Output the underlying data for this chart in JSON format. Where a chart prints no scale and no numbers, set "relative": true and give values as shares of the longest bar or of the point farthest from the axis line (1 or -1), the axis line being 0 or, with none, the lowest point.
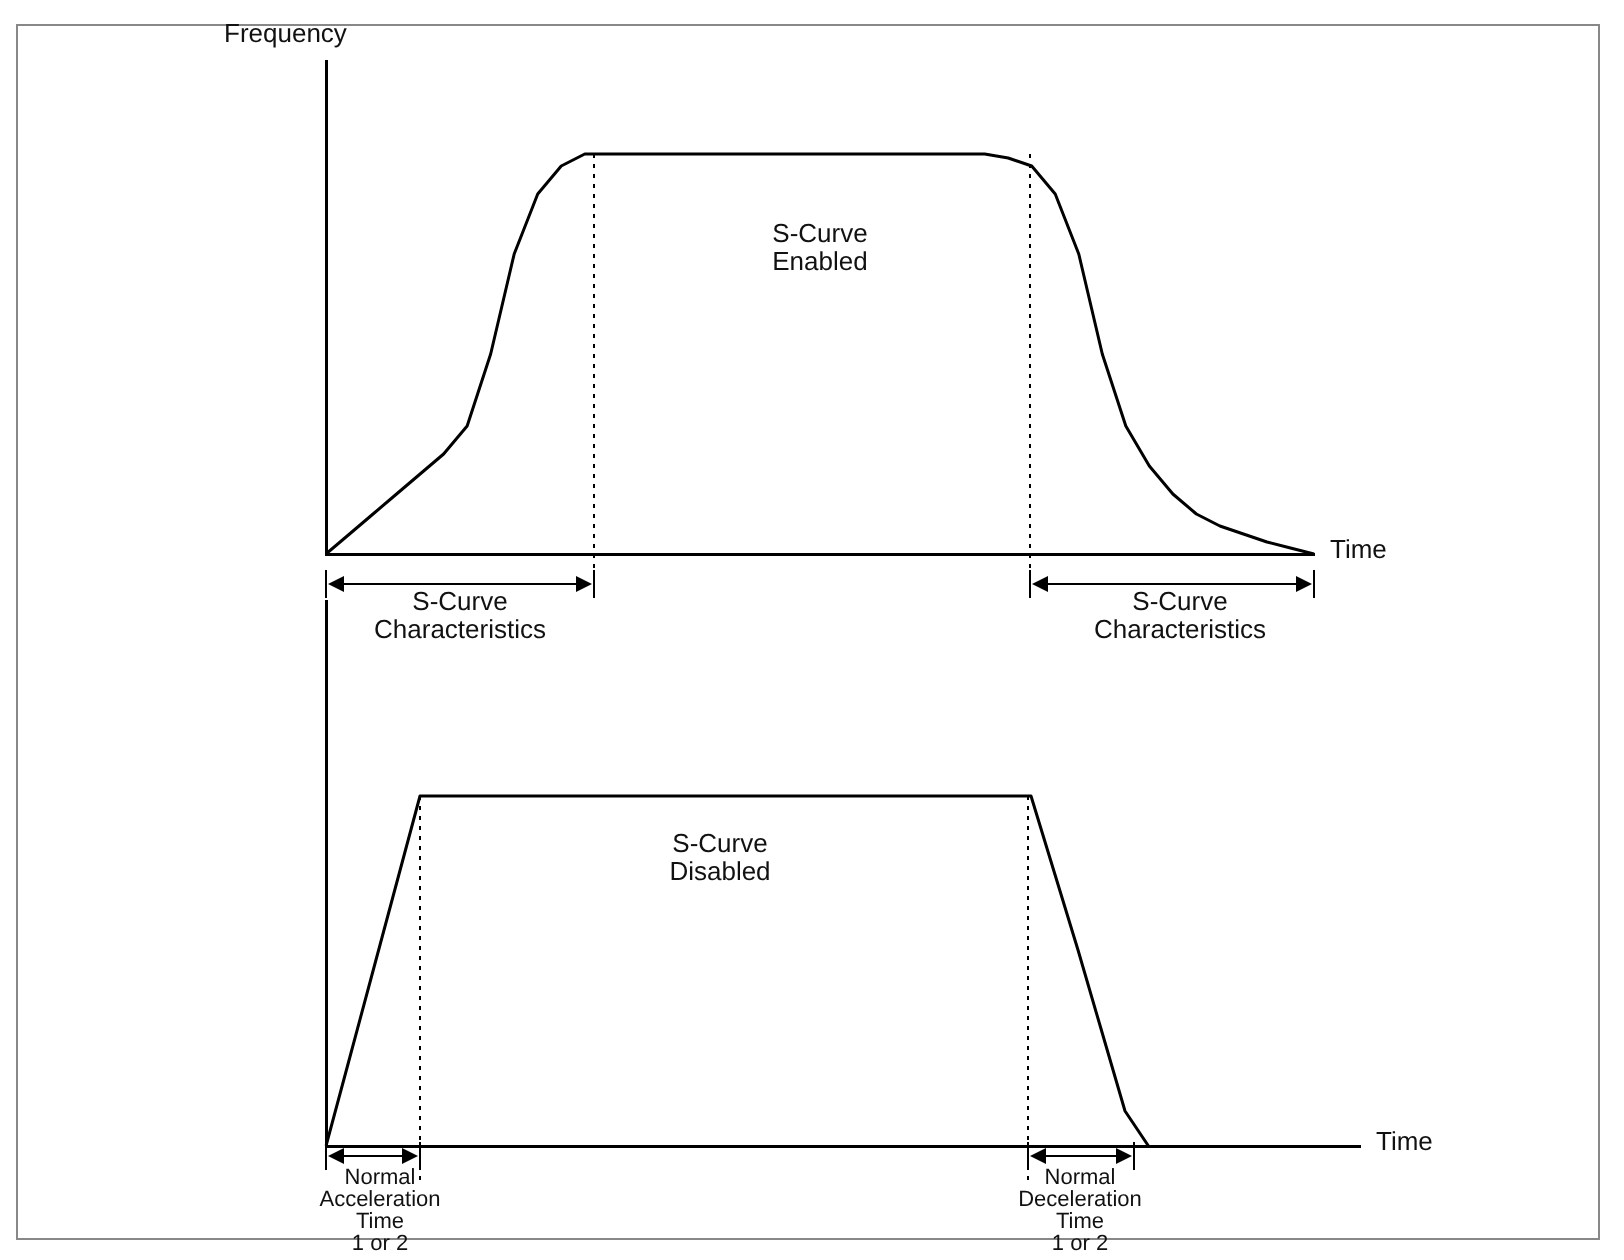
{
  "chart_data": [
    {
      "type": "line",
      "relative": true,
      "ylabel": "Frequency",
      "xlabel": "Time",
      "color": "#000000",
      "marker": "none",
      "line_style": "solid",
      "grid": false,
      "legend": false,
      "tick_labels": false,
      "categories": [
        null,
        null,
        null,
        null,
        null,
        null,
        null,
        null,
        null,
        null,
        null,
        null,
        null,
        null,
        null,
        null,
        null,
        null,
        null,
        null,
        null,
        null,
        null,
        null,
        null,
        null,
        null,
        null,
        null,
        null,
        null,
        null,
        null,
        null,
        null,
        null,
        null,
        null,
        null,
        null,
        null,
        null,
        null
      ],
      "values": [
        0,
        0.05,
        0.1,
        0.15,
        0.2,
        0.25,
        0.32,
        0.5,
        0.75,
        0.9,
        0.97,
        1,
        1,
        1,
        1,
        1,
        1,
        1,
        1,
        1,
        1,
        1,
        1,
        1,
        1,
        1,
        1,
        1,
        1,
        0.99,
        0.97,
        0.9,
        0.75,
        0.5,
        0.32,
        0.22,
        0.15,
        0.1,
        0.07,
        0.05,
        0.03,
        0.015,
        0
      ],
      "annotations": [
        "S-Curve\nEnabled",
        "S-Curve\nCharacteristics",
        "S-Curve\nCharacteristics"
      ]
    },
    {
      "type": "line",
      "relative": true,
      "xlabel": "Time",
      "color": "#000000",
      "marker": "none",
      "line_style": "solid",
      "grid": false,
      "legend": false,
      "tick_labels": false,
      "categories": [
        null,
        null,
        null,
        null,
        null,
        null,
        null,
        null,
        null,
        null,
        null,
        null,
        null,
        null,
        null,
        null,
        null,
        null,
        null,
        null,
        null,
        null,
        null,
        null,
        null,
        null,
        null,
        null,
        null,
        null,
        null,
        null,
        null,
        null,
        null,
        null,
        null,
        null,
        null,
        null,
        null,
        null,
        null,
        null,
        null
      ],
      "values": [
        0,
        0.25,
        0.5,
        0.75,
        1,
        1,
        1,
        1,
        1,
        1,
        1,
        1,
        1,
        1,
        1,
        1,
        1,
        1,
        1,
        1,
        1,
        1,
        1,
        1,
        1,
        1,
        1,
        1,
        1,
        1,
        1,
        0.78,
        0.56,
        0.33,
        0.1,
        0,
        null,
        null,
        null,
        null,
        null,
        null,
        null,
        null,
        null
      ],
      "annotations": [
        "S-Curve\nDisabled",
        "Normal\nAcceleration\nTime\n1 or 2",
        "Normal\nDeceleration\nTime\n1 or 2"
      ]
    }
  ]
}
